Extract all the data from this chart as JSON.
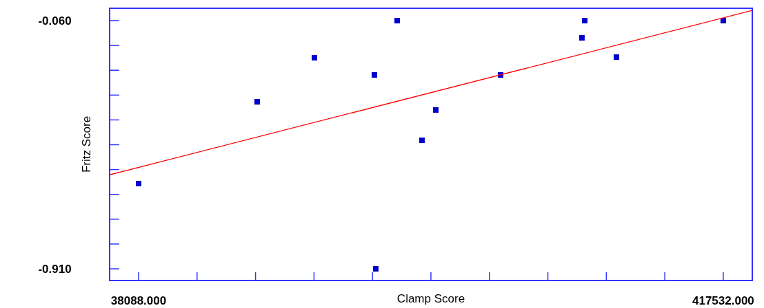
{
  "chart_data": {
    "type": "scatter",
    "xlabel": "Clamp Score",
    "ylabel": "Fritz Score",
    "xlim": [
      19293,
      436363
    ],
    "ylim": [
      -0.95,
      -0.0176
    ],
    "xticks": [
      {
        "value": 38088,
        "label": "38088.000"
      },
      {
        "value": 76032.4,
        "label": null
      },
      {
        "value": 113976.8,
        "label": null
      },
      {
        "value": 151921.2,
        "label": null
      },
      {
        "value": 189865.6,
        "label": null
      },
      {
        "value": 227810,
        "label": null
      },
      {
        "value": 265754.4,
        "label": null
      },
      {
        "value": 303698.8,
        "label": null
      },
      {
        "value": 341643.2,
        "label": null
      },
      {
        "value": 379587.6,
        "label": null
      },
      {
        "value": 417532,
        "label": "417532.000"
      }
    ],
    "yticks": [
      {
        "value": -0.06,
        "label": "-0.060"
      },
      {
        "value": -0.145,
        "label": null
      },
      {
        "value": -0.23,
        "label": null
      },
      {
        "value": -0.315,
        "label": null
      },
      {
        "value": -0.4,
        "label": null
      },
      {
        "value": -0.485,
        "label": null
      },
      {
        "value": -0.57,
        "label": null
      },
      {
        "value": -0.655,
        "label": null
      },
      {
        "value": -0.74,
        "label": null
      },
      {
        "value": -0.825,
        "label": null
      },
      {
        "value": -0.91,
        "label": "-0.910"
      }
    ],
    "grid": false,
    "series": [
      {
        "marker": "square",
        "color": "#0000cc",
        "x": [
          38088,
          115058,
          152200,
          191130,
          192000,
          205900,
          222000,
          230960,
          273000,
          325800,
          327600,
          348200,
          417532
        ],
        "values": [
          -0.618,
          -0.338,
          -0.187,
          -0.246,
          -0.91,
          -0.06,
          -0.47,
          -0.366,
          -0.246,
          -0.119,
          -0.06,
          -0.185,
          -0.06
        ]
      },
      {
        "type": "line",
        "color": "#ff0000",
        "x": [
          19293,
          436363
        ],
        "values": [
          -0.588,
          -0.025
        ]
      }
    ]
  }
}
